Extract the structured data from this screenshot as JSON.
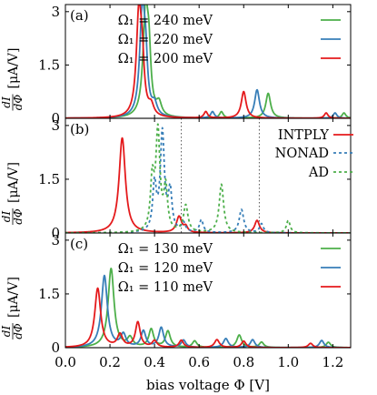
{
  "figure": {
    "xlabel": "bias voltage Φ [V]",
    "ylabel": {
      "num": "dI",
      "den": "dΦ",
      "unit": "[μA/V]"
    },
    "xticks": [
      "0.0",
      "0.2",
      "0.4",
      "0.6",
      "0.8",
      "1.0",
      "1.2"
    ]
  },
  "chart_data": [
    {
      "type": "line",
      "panel": "(a)",
      "xlim": [
        0.0,
        1.28
      ],
      "ylim": [
        0,
        3.2
      ],
      "yticks": [
        "0",
        "1.5",
        "3"
      ],
      "legend_position": "top-right",
      "series": [
        {
          "name": "Ω₁ = 240 meV",
          "color": "#4daf4a",
          "dash": "solid",
          "peaks": [
            [
              0.36,
              2.95,
              0.014
            ],
            [
              0.375,
              1.3,
              0.01
            ],
            [
              0.42,
              0.35,
              0.014
            ],
            [
              0.7,
              0.18,
              0.01
            ],
            [
              0.91,
              0.7,
              0.013
            ],
            [
              1.25,
              0.15,
              0.01
            ]
          ]
        },
        {
          "name": "Ω₁ = 220 meV",
          "color": "#377eb8",
          "dash": "solid",
          "peaks": [
            [
              0.345,
              2.95,
              0.014
            ],
            [
              0.36,
              1.2,
              0.01
            ],
            [
              0.4,
              0.32,
              0.014
            ],
            [
              0.66,
              0.18,
              0.01
            ],
            [
              0.86,
              0.8,
              0.013
            ],
            [
              1.21,
              0.15,
              0.01
            ]
          ]
        },
        {
          "name": "Ω₁ = 200 meV",
          "color": "#e41a1c",
          "dash": "solid",
          "peaks": [
            [
              0.33,
              2.95,
              0.014
            ],
            [
              0.345,
              1.1,
              0.01
            ],
            [
              0.385,
              0.28,
              0.014
            ],
            [
              0.63,
              0.18,
              0.01
            ],
            [
              0.8,
              0.75,
              0.013
            ],
            [
              1.17,
              0.15,
              0.01
            ]
          ]
        }
      ]
    },
    {
      "type": "line",
      "panel": "(b)",
      "xlim": [
        0.0,
        1.28
      ],
      "ylim": [
        0,
        3.2
      ],
      "yticks": [
        "0",
        "1.5",
        "3"
      ],
      "legend_position": "top-right",
      "vlines": [
        0.52,
        0.87
      ],
      "series": [
        {
          "name": "INTPLY",
          "color": "#e41a1c",
          "dash": "solid",
          "peaks": [
            [
              0.255,
              2.65,
              0.017
            ],
            [
              0.51,
              0.45,
              0.014
            ],
            [
              0.54,
              0.15,
              0.01
            ],
            [
              0.86,
              0.35,
              0.013
            ]
          ]
        },
        {
          "name": "NONAD",
          "color": "#377eb8",
          "dash": "3,3",
          "peaks": [
            [
              0.4,
              1.3,
              0.01
            ],
            [
              0.435,
              2.75,
              0.011
            ],
            [
              0.47,
              1.1,
              0.01
            ],
            [
              0.53,
              0.25,
              0.01
            ],
            [
              0.61,
              0.35,
              0.01
            ],
            [
              0.79,
              0.65,
              0.012
            ],
            [
              0.88,
              0.25,
              0.01
            ]
          ]
        },
        {
          "name": "AD",
          "color": "#4daf4a",
          "dash": "3,3",
          "peaks": [
            [
              0.39,
              1.4,
              0.01
            ],
            [
              0.415,
              2.75,
              0.011
            ],
            [
              0.45,
              1.2,
              0.01
            ],
            [
              0.54,
              0.75,
              0.012
            ],
            [
              0.7,
              1.35,
              0.012
            ],
            [
              1.0,
              0.35,
              0.01
            ]
          ]
        }
      ]
    },
    {
      "type": "line",
      "panel": "(c)",
      "xlim": [
        0.0,
        1.28
      ],
      "ylim": [
        0,
        3.2
      ],
      "yticks": [
        "0",
        "1.5",
        "3"
      ],
      "legend_position": "top-right",
      "series": [
        {
          "name": "Ω₁ = 130 meV",
          "color": "#4daf4a",
          "dash": "solid",
          "peaks": [
            [
              0.205,
              2.2,
              0.016
            ],
            [
              0.29,
              0.25,
              0.014
            ],
            [
              0.385,
              0.5,
              0.013
            ],
            [
              0.46,
              0.45,
              0.013
            ],
            [
              0.58,
              0.18,
              0.012
            ],
            [
              0.78,
              0.35,
              0.013
            ],
            [
              0.88,
              0.15,
              0.012
            ],
            [
              1.18,
              0.15,
              0.012
            ]
          ]
        },
        {
          "name": "Ω₁ = 120 meV",
          "color": "#377eb8",
          "dash": "solid",
          "peaks": [
            [
              0.175,
              2.0,
              0.016
            ],
            [
              0.26,
              0.35,
              0.014
            ],
            [
              0.35,
              0.45,
              0.013
            ],
            [
              0.43,
              0.55,
              0.013
            ],
            [
              0.53,
              0.2,
              0.012
            ],
            [
              0.72,
              0.25,
              0.013
            ],
            [
              0.84,
              0.22,
              0.012
            ],
            [
              1.15,
              0.2,
              0.012
            ]
          ]
        },
        {
          "name": "Ω₁ = 110 meV",
          "color": "#e41a1c",
          "dash": "solid",
          "peaks": [
            [
              0.145,
              1.65,
              0.016
            ],
            [
              0.245,
              0.35,
              0.014
            ],
            [
              0.325,
              0.7,
              0.013
            ],
            [
              0.4,
              0.18,
              0.013
            ],
            [
              0.52,
              0.2,
              0.012
            ],
            [
              0.68,
              0.22,
              0.013
            ],
            [
              0.8,
              0.18,
              0.012
            ],
            [
              1.1,
              0.12,
              0.012
            ]
          ]
        }
      ]
    }
  ]
}
